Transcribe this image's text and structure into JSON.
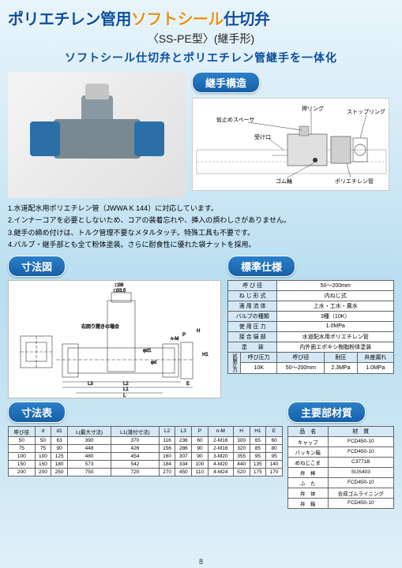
{
  "title": {
    "main_blue": "ポリエチレン管用",
    "main_orange": "ソフトシール",
    "main_blue2": "仕切弁",
    "sub": "〈SS-PE型〉(継手形)",
    "desc": "ソフトシール仕切弁とポリエチレン管継手を一体化"
  },
  "joint_structure": {
    "badge": "継手構造",
    "labels": {
      "spacer": "仮止めスペーサ",
      "ring": "押リング",
      "stop": "ストップリング",
      "socket": "受け口",
      "rubber": "ゴム輪",
      "pipe": "ポリエチレン管"
    }
  },
  "features": [
    "1.水道配水用ポリエチレン管（JWWA K 144）に対応しています。",
    "2.インナーコアを必要としないため、コアの装着忘れや、挿入の煩わしさがありません。",
    "3.継手の締め付けは、トルク管理不要なメタルタッチ。特殊工具も不要です。",
    "4.バルブ・継手部とも全て粉体塗装。さらに耐食性に優れた袋ナットを採用。"
  ],
  "drawing": {
    "badge": "寸法図",
    "labels": {
      "sq38": "□38",
      "sq335": "□33.5",
      "rot": "右回り閉きの場合",
      "L3": "L3",
      "L2": "L2",
      "L1": "L1",
      "L": "L",
      "d": "φd",
      "d1": "φd1",
      "H": "H",
      "H1": "H1",
      "nM": "n-M",
      "E": "E",
      "P": "P"
    }
  },
  "spec": {
    "badge": "標準仕様",
    "rows": [
      {
        "k": "呼 び 径",
        "v": "50～200mm"
      },
      {
        "k": "ね じ 形 式",
        "v": "内ねじ式"
      },
      {
        "k": "適 用 流 体",
        "v": "上水・工水・農水"
      },
      {
        "k": "バルブの種類",
        "v": "3種（10K）"
      },
      {
        "k": "使 用 圧 力",
        "v": "1.0MPa"
      },
      {
        "k": "接 合 端 部",
        "v": "水道配水用ポリエチレン管"
      },
      {
        "k": "塗　　装",
        "v": "内外面エポキシ樹脂粉体塗装"
      }
    ],
    "pressure": {
      "group": "試験圧力",
      "h1": "呼び圧力",
      "h2": "呼び径",
      "h3": "耐圧",
      "h4": "弁座漏れ",
      "v1": "10K",
      "v2": "50～200mm",
      "v3": "2.3MPa",
      "v4": "1.0MPa"
    }
  },
  "dim": {
    "badge": "寸法表",
    "headers": [
      "呼び径",
      "d",
      "d1",
      "L(最大寸法)",
      "L1(潜付寸法)",
      "L2",
      "L3",
      "P",
      "n-M",
      "H",
      "H1",
      "E"
    ],
    "rows": [
      [
        "50",
        "50",
        "63",
        "390",
        "370",
        "116",
        "236",
        "60",
        "2-M16",
        "300",
        "65",
        "60"
      ],
      [
        "75",
        "75",
        "90",
        "448",
        "426",
        "156",
        "286",
        "90",
        "2-M16",
        "320",
        "85",
        "80"
      ],
      [
        "100",
        "100",
        "125",
        "480",
        "454",
        "160",
        "307",
        "90",
        "3-M20",
        "355",
        "95",
        "95"
      ],
      [
        "150",
        "150",
        "180",
        "573",
        "542",
        "184",
        "334",
        "100",
        "4-M20",
        "440",
        "135",
        "140"
      ],
      [
        "200",
        "200",
        "250",
        "750",
        "720",
        "270",
        "450",
        "110",
        "4-M24",
        "520",
        "175",
        "170"
      ]
    ]
  },
  "mat": {
    "badge": "主要部材質",
    "headers": [
      "品　名",
      "材　質"
    ],
    "rows": [
      [
        "キャップ",
        "FCD450-10"
      ],
      [
        "パッキン箱",
        "FCD450-10"
      ],
      [
        "めねじこま",
        "C3771B"
      ],
      [
        "弁　棒",
        "SUS403"
      ],
      [
        "ふ　た",
        "FCD450-10"
      ],
      [
        "弁　体",
        "合成ゴムライニング"
      ],
      [
        "弁　箱",
        "FCD450-10"
      ]
    ]
  },
  "page": "8",
  "colors": {
    "blue": "#0a4fa0",
    "orange": "#e8931b",
    "badge_grad_top": "#2b7fc8",
    "badge_grad_bot": "#1560a8",
    "header_bg": "#d5e8f5"
  }
}
